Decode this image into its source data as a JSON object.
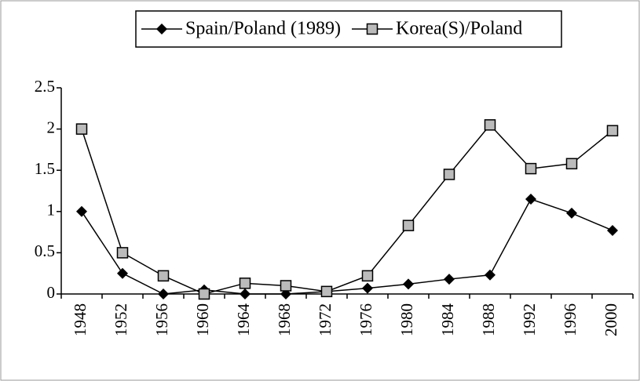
{
  "chart_data": {
    "type": "line",
    "categories": [
      "1948",
      "1952",
      "1956",
      "1960",
      "1964",
      "1968",
      "1972",
      "1976",
      "1980",
      "1984",
      "1988",
      "1992",
      "1996",
      "2000"
    ],
    "series": [
      {
        "name": "Spain/Poland (1989)",
        "color": "#000000",
        "marker": "diamond",
        "values": [
          1.0,
          0.25,
          0,
          0.05,
          0,
          0,
          0.03,
          0.07,
          0.12,
          0.18,
          0.23,
          1.15,
          0.98,
          0.77
        ]
      },
      {
        "name": "Korea(S)/Poland",
        "color": "#000000",
        "marker": "square",
        "values": [
          2.0,
          0.5,
          0.22,
          0,
          0.13,
          0.1,
          0.03,
          0.22,
          0.83,
          1.45,
          2.05,
          1.52,
          1.58,
          1.98
        ]
      }
    ],
    "ylim": [
      0,
      2.5
    ],
    "yticks": [
      0,
      0.5,
      1,
      1.5,
      2,
      2.5
    ]
  }
}
